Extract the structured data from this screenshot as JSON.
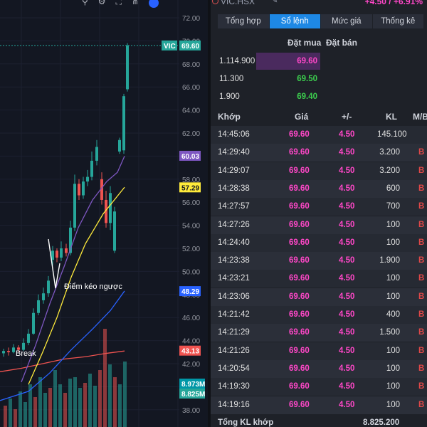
{
  "chart": {
    "toolbar_icons": [
      "search-icon",
      "gear-icon",
      "fullscreen-icon",
      "share-icon",
      "logo-icon"
    ],
    "price_axis": [
      "72.00",
      "70.00",
      "68.00",
      "66.00",
      "64.00",
      "62.00",
      "60.00",
      "58.00",
      "56.00",
      "54.00",
      "52.00",
      "50.00",
      "48.00",
      "46.00",
      "44.00",
      "42.00",
      "40.00",
      "38.00"
    ],
    "tags": [
      {
        "text": "VIC",
        "color": "#26a69a"
      },
      {
        "text": "69.60",
        "color": "#26a69a"
      },
      {
        "text": "60.03",
        "color": "#7e57c2"
      },
      {
        "text": "57.29",
        "color": "#ffeb3b"
      },
      {
        "text": "48.29",
        "color": "#2962ff"
      },
      {
        "text": "43.13",
        "color": "#ef5350"
      },
      {
        "text": "8.973M",
        "color": "#0097a7"
      },
      {
        "text": "8.825M",
        "color": "#26a69a"
      }
    ],
    "annotations": {
      "reversal": "Điểm kéo ngược",
      "break": "Break"
    }
  },
  "panel": {
    "symbol": "VIC.HSX",
    "change": "+4.50 / +6.91%",
    "tabs": [
      {
        "label": "Tổng hợp",
        "active": false
      },
      {
        "label": "Sổ lệnh",
        "active": true
      },
      {
        "label": "Mức giá",
        "active": false
      },
      {
        "label": "Thống kê",
        "active": false
      }
    ],
    "book": {
      "bid_header": "Đặt mua",
      "ask_header": "Đặt bán",
      "rows": [
        {
          "qty": "1.114.900",
          "price": "69.60",
          "color": "#ff47c8",
          "bar": 1.0
        },
        {
          "qty": "11.300",
          "price": "69.50",
          "color": "#3ccf4e",
          "bar": 0
        },
        {
          "qty": "1.900",
          "price": "69.40",
          "color": "#3ccf4e",
          "bar": 0
        }
      ]
    },
    "matches": {
      "headers": {
        "time": "Khớp",
        "price": "Giá",
        "chg": "+/-",
        "vol": "KL",
        "side": "M/B"
      },
      "rows": [
        {
          "time": "14:45:06",
          "price": "69.60",
          "chg": "4.50",
          "vol": "145.100",
          "side": ""
        },
        {
          "time": "14:29:40",
          "price": "69.60",
          "chg": "4.50",
          "vol": "3.200",
          "side": "B"
        },
        {
          "time": "14:29:07",
          "price": "69.60",
          "chg": "4.50",
          "vol": "3.200",
          "side": "B"
        },
        {
          "time": "14:28:38",
          "price": "69.60",
          "chg": "4.50",
          "vol": "600",
          "side": "B"
        },
        {
          "time": "14:27:57",
          "price": "69.60",
          "chg": "4.50",
          "vol": "700",
          "side": "B"
        },
        {
          "time": "14:27:26",
          "price": "69.60",
          "chg": "4.50",
          "vol": "100",
          "side": "B"
        },
        {
          "time": "14:24:40",
          "price": "69.60",
          "chg": "4.50",
          "vol": "100",
          "side": "B"
        },
        {
          "time": "14:23:38",
          "price": "69.60",
          "chg": "4.50",
          "vol": "1.900",
          "side": "B"
        },
        {
          "time": "14:23:21",
          "price": "69.60",
          "chg": "4.50",
          "vol": "100",
          "side": "B"
        },
        {
          "time": "14:23:06",
          "price": "69.60",
          "chg": "4.50",
          "vol": "100",
          "side": "B"
        },
        {
          "time": "14:21:42",
          "price": "69.60",
          "chg": "4.50",
          "vol": "400",
          "side": "B"
        },
        {
          "time": "14:21:29",
          "price": "69.60",
          "chg": "4.50",
          "vol": "1.500",
          "side": "B"
        },
        {
          "time": "14:21:26",
          "price": "69.60",
          "chg": "4.50",
          "vol": "100",
          "side": "B"
        },
        {
          "time": "14:20:54",
          "price": "69.60",
          "chg": "4.50",
          "vol": "100",
          "side": "B"
        },
        {
          "time": "14:19:30",
          "price": "69.60",
          "chg": "4.50",
          "vol": "100",
          "side": "B"
        },
        {
          "time": "14:19:16",
          "price": "69.60",
          "chg": "4.50",
          "vol": "100",
          "side": "B"
        }
      ]
    },
    "footer": {
      "label": "Tổng KL khớp",
      "value": "8.825.200"
    }
  }
}
